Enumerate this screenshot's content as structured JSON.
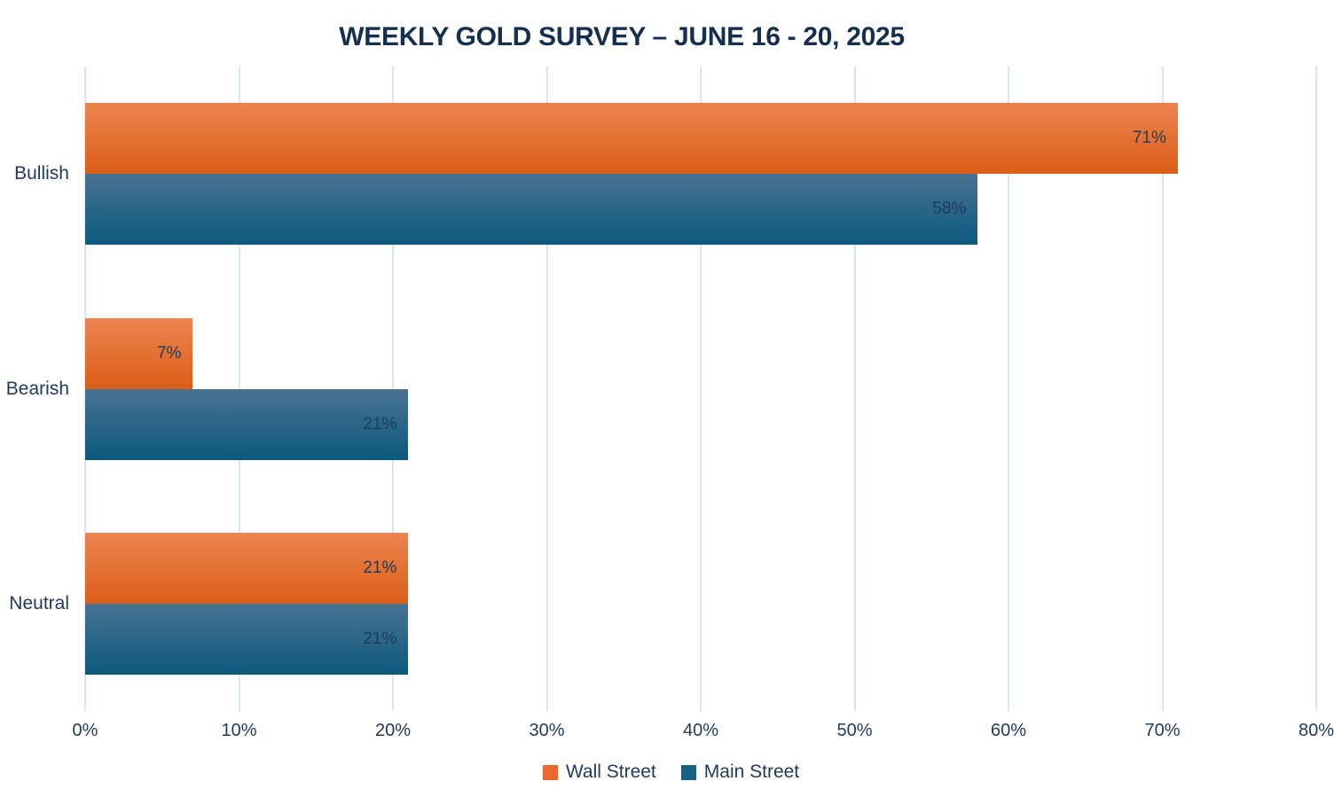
{
  "chart_data": {
    "type": "bar",
    "orientation": "horizontal",
    "title": "WEEKLY GOLD SURVEY – JUNE 16 - 20, 2025",
    "categories": [
      "Bullish",
      "Bearish",
      "Neutral"
    ],
    "series": [
      {
        "name": "Wall Street",
        "values": [
          71,
          7,
          21
        ],
        "labels": [
          "71%",
          "7%",
          "21%"
        ],
        "gradient_top": "#EC8450",
        "gradient_bottom": "#DB5E17",
        "legend_color": "#E8682F"
      },
      {
        "name": "Main Street",
        "values": [
          58,
          21,
          21
        ],
        "labels": [
          "58%",
          "21%",
          "21%"
        ],
        "gradient_top": "#4A7292",
        "gradient_bottom": "#0B5A7D",
        "legend_color": "#1D5F80"
      }
    ],
    "x_axis": {
      "ticks": [
        "0%",
        "10%",
        "20%",
        "30%",
        "40%",
        "50%",
        "60%",
        "70%",
        "80%"
      ],
      "min": 0,
      "max": 80
    },
    "grid": true,
    "legend_position": "bottom",
    "colors": {
      "gridline": "#D9E5F5",
      "text": "#1F3A5C",
      "title": "#152F4E",
      "background": "#FFFFFF"
    }
  }
}
